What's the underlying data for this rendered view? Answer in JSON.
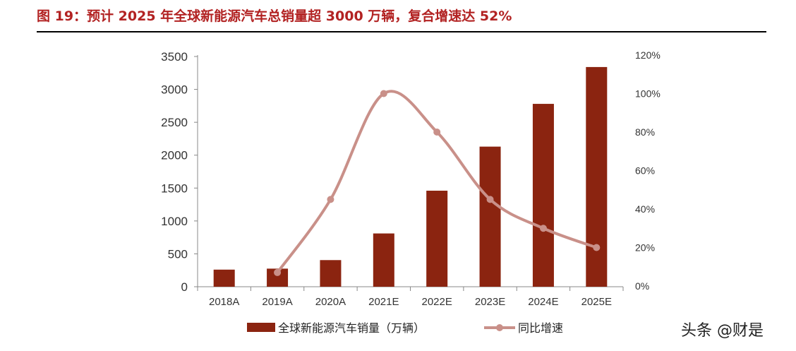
{
  "title": "图 19：预计 2025 年全球新能源汽车总销量超 3000 万辆，复合增速达 52%",
  "watermark": "头条 @财是",
  "colors": {
    "bar": "#8b2410",
    "line": "#c99089",
    "title": "#b22222"
  },
  "chart_data": {
    "type": "bar",
    "categories": [
      "2018A",
      "2019A",
      "2020A",
      "2021E",
      "2022E",
      "2023E",
      "2024E",
      "2025E"
    ],
    "series": [
      {
        "name": "全球新能源汽车销量（万辆）",
        "type": "bar",
        "axis": "left",
        "values": [
          260,
          275,
          405,
          810,
          1460,
          2130,
          2780,
          3340
        ]
      },
      {
        "name": "同比增速",
        "type": "line",
        "axis": "right",
        "values": [
          null,
          0.07,
          0.45,
          1.0,
          0.8,
          0.45,
          0.3,
          0.2
        ]
      }
    ],
    "y_left": {
      "min": 0,
      "max": 3500,
      "ticks": [
        0,
        500,
        1000,
        1500,
        2000,
        2500,
        3000,
        3500
      ]
    },
    "y_right": {
      "min": 0,
      "max": 1.2,
      "ticks": [
        "0%",
        "20%",
        "40%",
        "60%",
        "80%",
        "100%",
        "120%"
      ]
    },
    "legend_position": "bottom",
    "grid": false
  }
}
